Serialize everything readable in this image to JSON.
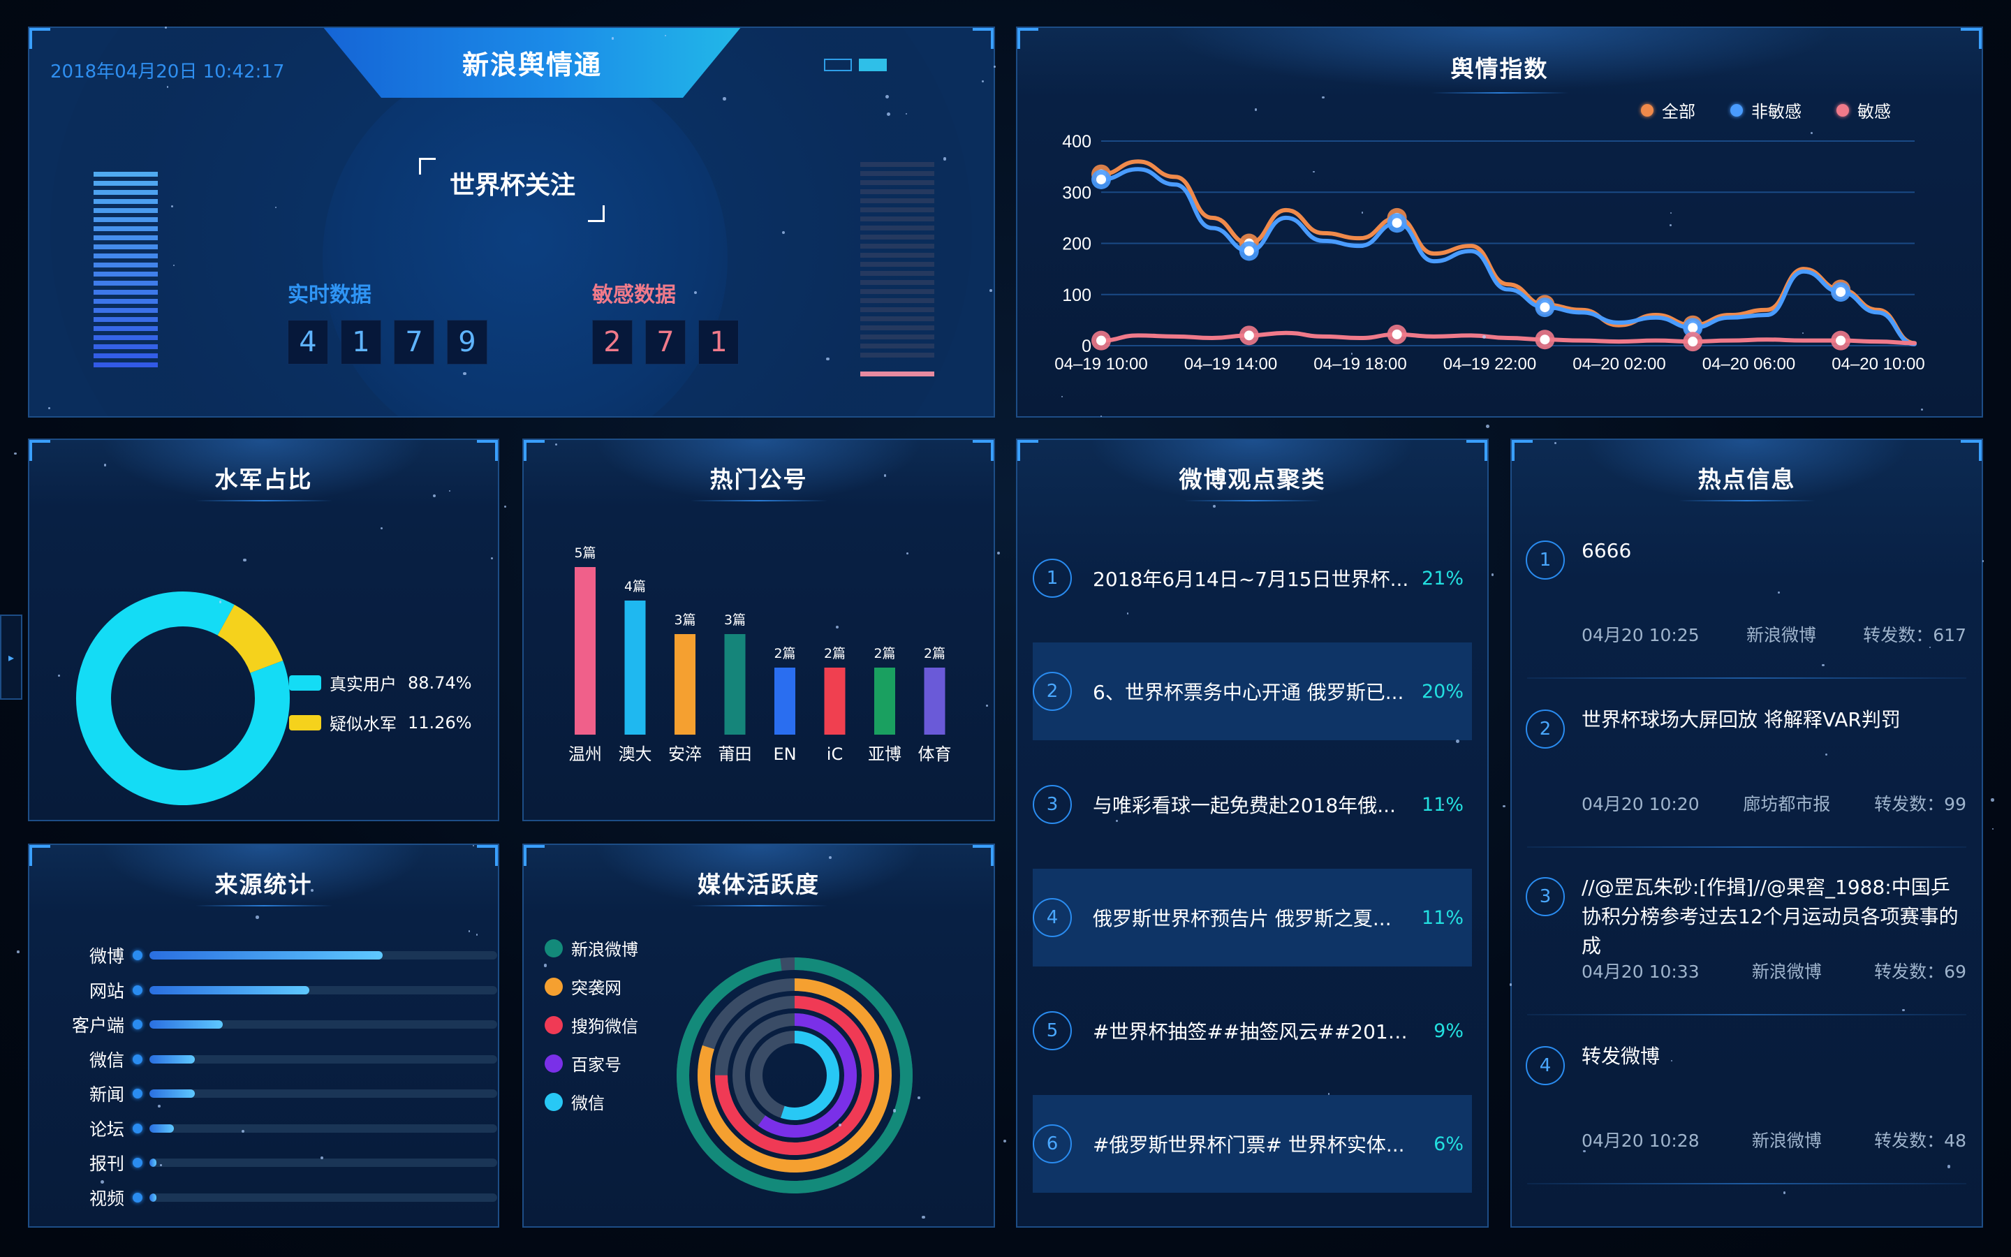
{
  "header": {
    "app_title": "新浪舆情通",
    "datetime": "2018年04月20日 10:42:17",
    "topic": "世界杯关注",
    "realtime_label": "实时数据",
    "realtime_digits": [
      "4",
      "1",
      "7",
      "9"
    ],
    "sensitive_label": "敏感数据",
    "sensitive_digits": [
      "2",
      "7",
      "1"
    ]
  },
  "sentiment_index": {
    "title": "舆情指数",
    "legend": [
      {
        "name": "全部",
        "color": "#f08a4b"
      },
      {
        "name": "非敏感",
        "color": "#4a9cff"
      },
      {
        "name": "敏感",
        "color": "#f07a8a"
      }
    ],
    "chart_data": {
      "type": "line",
      "x_ticks": [
        "04–19 10:00",
        "04–19 14:00",
        "04–19 18:00",
        "04–19 22:00",
        "04–20 02:00",
        "04–20 06:00",
        "04–20 10:00"
      ],
      "ylim": [
        0,
        400
      ],
      "y_ticks": [
        "0",
        "100",
        "200",
        "300",
        "400"
      ],
      "grid": true,
      "series": [
        {
          "name": "全部",
          "color": "#f08a4b",
          "values": [
            335,
            360,
            330,
            250,
            200,
            265,
            220,
            210,
            250,
            180,
            195,
            120,
            80,
            70,
            40,
            60,
            40,
            60,
            70,
            150,
            110,
            70,
            5
          ]
        },
        {
          "name": "非敏感",
          "color": "#4a9cff",
          "values": [
            325,
            345,
            315,
            230,
            185,
            250,
            205,
            195,
            240,
            165,
            185,
            110,
            75,
            65,
            45,
            55,
            35,
            55,
            60,
            145,
            105,
            65,
            3
          ]
        },
        {
          "name": "敏感",
          "color": "#f07a8a",
          "values": [
            10,
            20,
            18,
            15,
            20,
            25,
            18,
            15,
            22,
            18,
            20,
            15,
            12,
            10,
            8,
            10,
            8,
            10,
            12,
            10,
            10,
            8,
            5
          ]
        }
      ]
    }
  },
  "water_army": {
    "title": "水军占比",
    "chart_data": {
      "type": "pie",
      "slices": [
        {
          "name": "真实用户",
          "value": 88.74,
          "label": "88.74%",
          "color": "#14dcf5"
        },
        {
          "name": "疑似水军",
          "value": 11.26,
          "label": "11.26%",
          "color": "#f5d21c"
        }
      ]
    }
  },
  "hot_accounts": {
    "title": "热门公号",
    "chart_data": {
      "type": "bar",
      "categories": [
        "温州",
        "澳大",
        "安淬",
        "莆田",
        "EN",
        "iC",
        "亚博",
        "体育"
      ],
      "values": [
        5,
        4,
        3,
        3,
        2,
        2,
        2,
        2
      ],
      "value_labels": [
        "5篇",
        "4篇",
        "3篇",
        "3篇",
        "2篇",
        "2篇",
        "2篇",
        "2篇"
      ],
      "colors": [
        "#f0608a",
        "#1fb8f0",
        "#f5a030",
        "#15857a",
        "#2a6ef0",
        "#f04050",
        "#1aa060",
        "#6a5ad8"
      ],
      "ylim": [
        0,
        5
      ]
    }
  },
  "source_stats": {
    "title": "来源统计",
    "chart_data": {
      "type": "bar",
      "categories": [
        "微博",
        "网站",
        "客户端",
        "微信",
        "新闻",
        "论坛",
        "报刊",
        "视频"
      ],
      "values": [
        0.67,
        0.46,
        0.21,
        0.13,
        0.13,
        0.07,
        0.02,
        0.02
      ]
    }
  },
  "media_activity": {
    "title": "媒体活跃度",
    "legend": [
      {
        "name": "新浪微博",
        "color": "#138a7a"
      },
      {
        "name": "突袭网",
        "color": "#f5a030"
      },
      {
        "name": "搜狗微信",
        "color": "#f03a55"
      },
      {
        "name": "百家号",
        "color": "#7a30e8"
      },
      {
        "name": "微信",
        "color": "#28c8f5"
      }
    ],
    "chart_data": {
      "type": "pie",
      "rings": [
        {
          "name": "新浪微博",
          "value": 0.98
        },
        {
          "name": "突袭网",
          "value": 0.8
        },
        {
          "name": "搜狗微信",
          "value": 0.75
        },
        {
          "name": "百家号",
          "value": 0.6
        },
        {
          "name": "微信",
          "value": 0.55
        }
      ]
    }
  },
  "weibo_clusters": {
    "title": "微博观点聚类",
    "items": [
      {
        "num": "1",
        "text": "2018年6月14日~7月15日世界杯...",
        "pct": "21%"
      },
      {
        "num": "2",
        "text": "6、世界杯票务中心开通 俄罗斯已...",
        "pct": "20%"
      },
      {
        "num": "3",
        "text": "与唯彩看球一起免费赴2018年俄...",
        "pct": "11%"
      },
      {
        "num": "4",
        "text": "俄罗斯世界杯预告片 俄罗斯之夏...",
        "pct": "11%"
      },
      {
        "num": "5",
        "text": "#世界杯抽签##抽签风云##2018俄...",
        "pct": "9%"
      },
      {
        "num": "6",
        "text": "#俄罗斯世界杯门票# 世界杯实体...",
        "pct": "6%"
      }
    ]
  },
  "hot_info": {
    "title": "热点信息",
    "items": [
      {
        "num": "1",
        "title": "6666",
        "time": "04月20 10:25",
        "source": "新浪微博",
        "reposts": "转发数：617"
      },
      {
        "num": "2",
        "title": "世界杯球场大屏回放 将解释VAR判罚",
        "time": "04月20 10:20",
        "source": "廊坊都市报",
        "reposts": "转发数：99"
      },
      {
        "num": "3",
        "title": "//@罡瓦朱砂:[作揖]//@果窖_1988:中国乒协积分榜参考过去12个月运动员各项赛事的成",
        "time": "04月20 10:33",
        "source": "新浪微博",
        "reposts": "转发数：69"
      },
      {
        "num": "4",
        "title": "转发微博",
        "time": "04月20 10:28",
        "source": "新浪微博",
        "reposts": "转发数：48"
      }
    ]
  }
}
